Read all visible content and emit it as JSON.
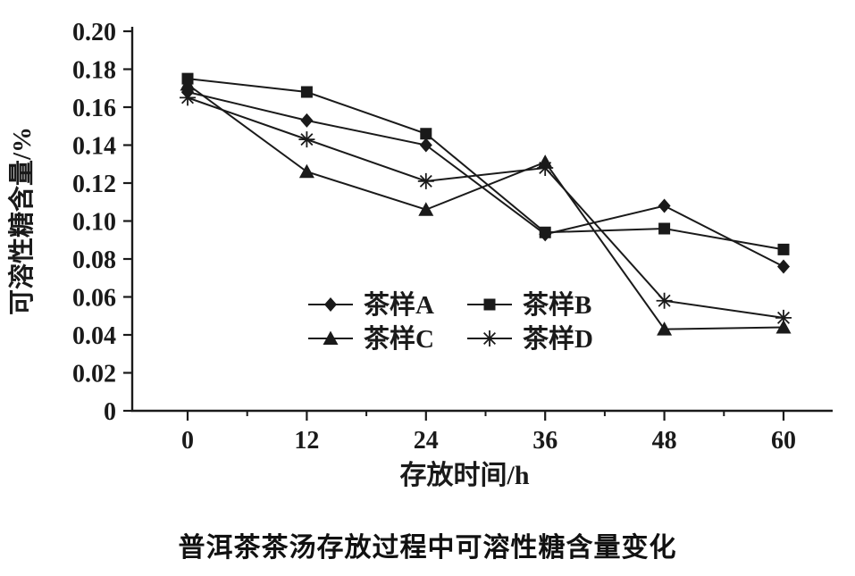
{
  "caption": "普洱茶茶汤存放过程中可溶性糖含量变化",
  "chart_data": {
    "type": "line",
    "x": [
      0,
      12,
      24,
      36,
      48,
      60
    ],
    "xtick_labels": [
      "0",
      "12",
      "24",
      "36",
      "48",
      "60"
    ],
    "x_minor_ticks": [
      6,
      18,
      30,
      42,
      54
    ],
    "xlim": [
      0,
      60
    ],
    "ylim": [
      0,
      0.2
    ],
    "ytick_labels": [
      "0",
      "0.02",
      "0.04",
      "0.06",
      "0.08",
      "0.10",
      "0.12",
      "0.14",
      "0.16",
      "0.18",
      "0.20"
    ],
    "xlabel": "存放时间/h",
    "ylabel": "可溶性糖含量/%",
    "grid": false,
    "legend_position": "inside-center",
    "line_color": "#1a1a1a",
    "series": [
      {
        "name": "茶样A",
        "marker": "diamond",
        "values": [
          0.168,
          0.153,
          0.14,
          0.093,
          0.108,
          0.076
        ]
      },
      {
        "name": "茶样B",
        "marker": "square",
        "values": [
          0.175,
          0.168,
          0.146,
          0.094,
          0.096,
          0.085
        ]
      },
      {
        "name": "茶样C",
        "marker": "triangle",
        "values": [
          0.172,
          0.126,
          0.106,
          0.131,
          0.043,
          0.044
        ]
      },
      {
        "name": "茶样D",
        "marker": "asterisk",
        "values": [
          0.165,
          0.143,
          0.121,
          0.128,
          0.058,
          0.049
        ]
      }
    ]
  }
}
